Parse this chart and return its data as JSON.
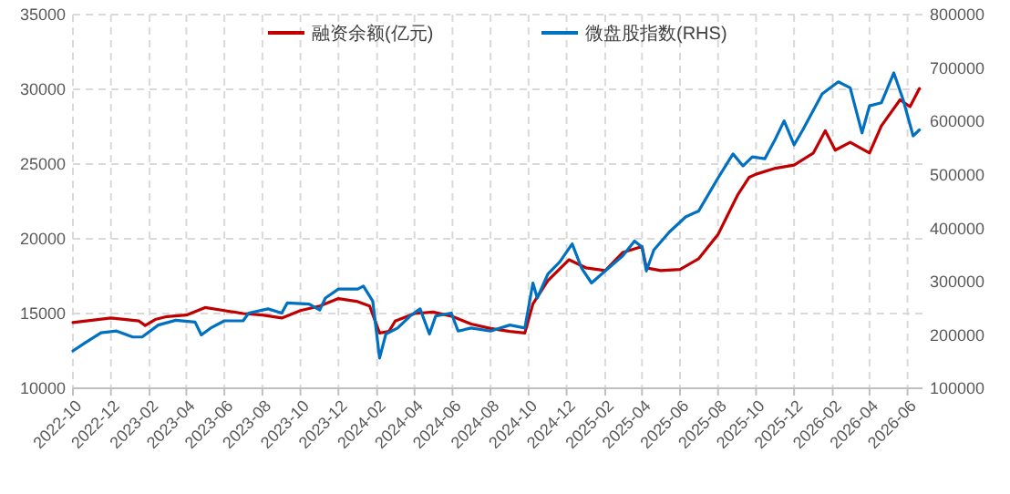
{
  "chart_data": {
    "type": "line",
    "legend": "top",
    "grid": true,
    "line_style": "solid",
    "xlim": [
      "2022-10-01",
      "2026-06-25"
    ],
    "xticks": [
      "2022-10",
      "2022-12",
      "2023-02",
      "2023-04",
      "2023-06",
      "2023-08",
      "2023-10",
      "2023-12",
      "2024-02",
      "2024-04",
      "2024-06",
      "2024-08",
      "2024-10",
      "2024-12",
      "2025-02",
      "2025-04",
      "2025-06",
      "2025-08",
      "2025-10",
      "2025-12",
      "2026-02",
      "2026-04",
      "2026-06"
    ],
    "ylim": [
      10000,
      35000
    ],
    "yticks": [
      10000,
      15000,
      20000,
      25000,
      30000,
      35000
    ],
    "y2lim": [
      100000,
      800000
    ],
    "y2ticks": [
      100000,
      200000,
      300000,
      400000,
      500000,
      600000,
      700000,
      800000
    ],
    "series": [
      {
        "name": "融资余额(亿元)",
        "color": "#c00000",
        "x": [
          "2022-10-01",
          "2022-12-01",
          "2023-01-15",
          "2023-01-25",
          "2023-02-10",
          "2023-03-01",
          "2023-04-01",
          "2023-05-01",
          "2023-06-01",
          "2023-07-01",
          "2023-08-01",
          "2023-09-01",
          "2023-10-01",
          "2023-11-01",
          "2023-12-01",
          "2024-01-01",
          "2024-01-20",
          "2024-02-05",
          "2024-02-20",
          "2024-03-01",
          "2024-04-01",
          "2024-05-01",
          "2024-06-01",
          "2024-07-01",
          "2024-08-01",
          "2024-09-01",
          "2024-09-25",
          "2024-10-08",
          "2024-11-01",
          "2024-12-05",
          "2025-01-01",
          "2025-02-01",
          "2025-03-01",
          "2025-04-01",
          "2025-04-08",
          "2025-05-01",
          "2025-06-01",
          "2025-07-01",
          "2025-08-01",
          "2025-09-01",
          "2025-09-20",
          "2025-10-01",
          "2025-11-01",
          "2025-12-01",
          "2026-01-01",
          "2026-01-20",
          "2026-02-05",
          "2026-03-01",
          "2026-04-01",
          "2026-04-20",
          "2026-05-20",
          "2026-06-05",
          "2026-06-20"
        ],
        "values": [
          14400,
          14700,
          14500,
          14200,
          14600,
          14800,
          14900,
          15400,
          15200,
          15000,
          14900,
          14700,
          15200,
          15500,
          16000,
          15800,
          15500,
          13700,
          13800,
          14500,
          15000,
          15100,
          14800,
          14300,
          14000,
          13800,
          13700,
          15650,
          17200,
          18600,
          18060,
          17870,
          19080,
          19480,
          18060,
          17870,
          17950,
          18670,
          20290,
          22900,
          24120,
          24320,
          24720,
          24930,
          25740,
          27230,
          25930,
          26460,
          25740,
          27550,
          29300,
          28840,
          30050
        ]
      },
      {
        "name": "微盘股指数(RHS)",
        "color": "#0070c0",
        "axis": "y2",
        "x": [
          "2022-10-01",
          "2022-10-20",
          "2022-11-15",
          "2022-12-10",
          "2023-01-05",
          "2023-01-20",
          "2023-02-15",
          "2023-03-15",
          "2023-04-15",
          "2023-04-25",
          "2023-05-10",
          "2023-06-01",
          "2023-07-01",
          "2023-07-10",
          "2023-08-10",
          "2023-09-01",
          "2023-09-10",
          "2023-10-15",
          "2023-11-01",
          "2023-11-10",
          "2023-12-01",
          "2024-01-01",
          "2024-01-10",
          "2024-01-25",
          "2024-02-05",
          "2024-02-15",
          "2024-03-05",
          "2024-03-25",
          "2024-04-10",
          "2024-04-25",
          "2024-05-05",
          "2024-05-30",
          "2024-06-10",
          "2024-07-01",
          "2024-08-01",
          "2024-09-01",
          "2024-09-25",
          "2024-10-08",
          "2024-10-15",
          "2024-11-01",
          "2024-11-20",
          "2024-12-10",
          "2024-12-25",
          "2025-01-10",
          "2025-02-01",
          "2025-03-01",
          "2025-03-20",
          "2025-04-01",
          "2025-04-08",
          "2025-04-20",
          "2025-05-15",
          "2025-06-10",
          "2025-07-01",
          "2025-08-01",
          "2025-08-25",
          "2025-09-10",
          "2025-09-25",
          "2025-10-15",
          "2025-11-01",
          "2025-11-15",
          "2025-12-01",
          "2025-12-15",
          "2026-01-15",
          "2026-02-10",
          "2026-03-01",
          "2026-03-20",
          "2026-04-01",
          "2026-04-20",
          "2026-05-10",
          "2026-05-25",
          "2026-06-10",
          "2026-06-20"
        ],
        "values": [
          170000,
          184600,
          203800,
          207200,
          196000,
          196000,
          218400,
          227400,
          224000,
          200000,
          212800,
          226300,
          226300,
          240900,
          248800,
          240900,
          260000,
          257800,
          246600,
          269000,
          285900,
          285900,
          291500,
          263400,
          156600,
          201500,
          212800,
          235300,
          248800,
          201500,
          235300,
          240900,
          207200,
          212800,
          207200,
          218400,
          212800,
          297200,
          269000,
          314000,
          336600,
          370300,
          325300,
          297200,
          319700,
          347800,
          375900,
          364600,
          319700,
          359000,
          392800,
          420900,
          432200,
          494000,
          539000,
          516500,
          533400,
          530000,
          567100,
          600900,
          555900,
          584000,
          651500,
          674000,
          662800,
          578400,
          629000,
          634700,
          690900,
          640300,
          572800,
          584000
        ]
      }
    ]
  }
}
